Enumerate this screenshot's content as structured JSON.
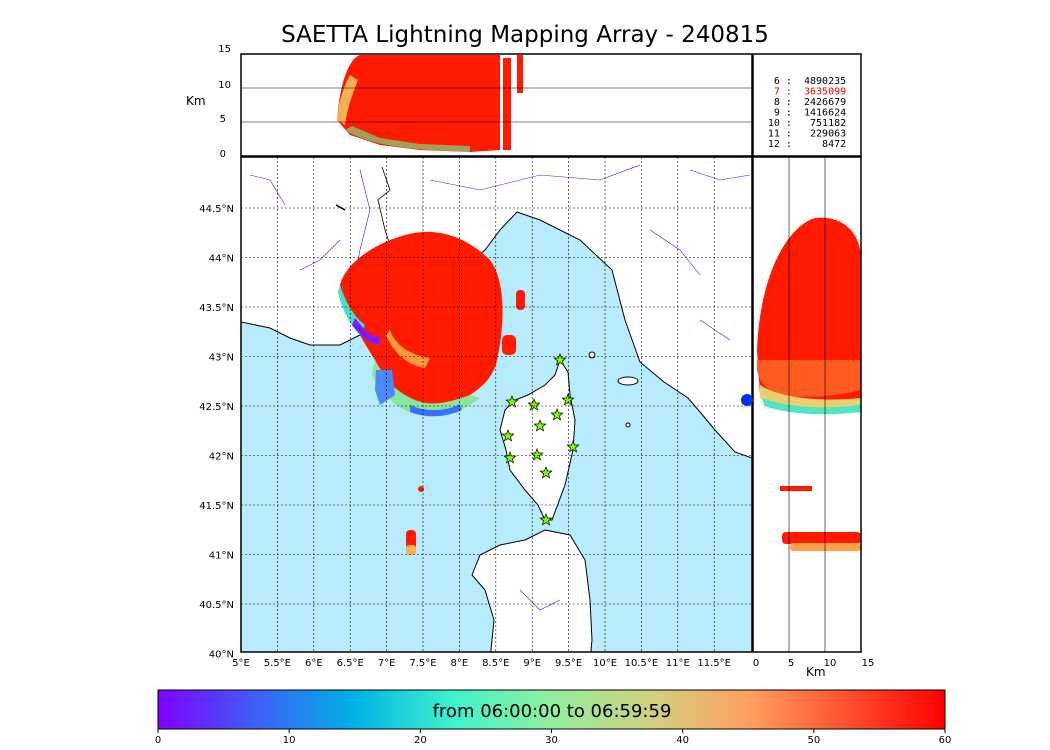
{
  "title": "SAETTA Lightning Mapping Array - 240815",
  "altitude_panel": {
    "label": "Km",
    "ticks": [
      "15",
      "10",
      "5",
      "0"
    ]
  },
  "side_panel": {
    "label": "Km",
    "ticks": [
      "0",
      "5",
      "10",
      "15"
    ]
  },
  "station_stats": [
    {
      "stations": "6",
      "count": "4890235",
      "color": "#000000"
    },
    {
      "stations": "7",
      "count": "3635099",
      "color": "#ff0000"
    },
    {
      "stations": "8",
      "count": "2426679",
      "color": "#000000"
    },
    {
      "stations": "9",
      "count": "1416624",
      "color": "#000000"
    },
    {
      "stations": "10",
      "count": "751182",
      "color": "#000000"
    },
    {
      "stations": "11",
      "count": "229063",
      "color": "#000000"
    },
    {
      "stations": "12",
      "count": "8472",
      "color": "#000000"
    }
  ],
  "map": {
    "lon_ticks": [
      "5°E",
      "5.5°E",
      "6°E",
      "6.5°E",
      "7°E",
      "7.5°E",
      "8°E",
      "8.5°E",
      "9°E",
      "9.5°E",
      "10°E",
      "10.5°E",
      "11°E",
      "11.5°E"
    ],
    "lat_ticks": [
      "44.5°N",
      "44°N",
      "43.5°N",
      "43°N",
      "42.5°N",
      "42°N",
      "41.5°N",
      "41°N",
      "40.5°N",
      "40°N"
    ],
    "sea_color": "#b8ecfc",
    "land_color": "#ffffff",
    "station_marker": "star-icon",
    "station_color": "#7cfc00"
  },
  "colorbar": {
    "text": "from 06:00:00 to 06:59:59",
    "ticks": [
      "0",
      "10",
      "20",
      "30",
      "40",
      "50",
      "60"
    ],
    "colors": [
      "#7f00ff",
      "#3f60f8",
      "#00b2e5",
      "#40f2cc",
      "#90f0a0",
      "#d0d080",
      "#ffa060",
      "#ff5030",
      "#ff0000"
    ]
  }
}
